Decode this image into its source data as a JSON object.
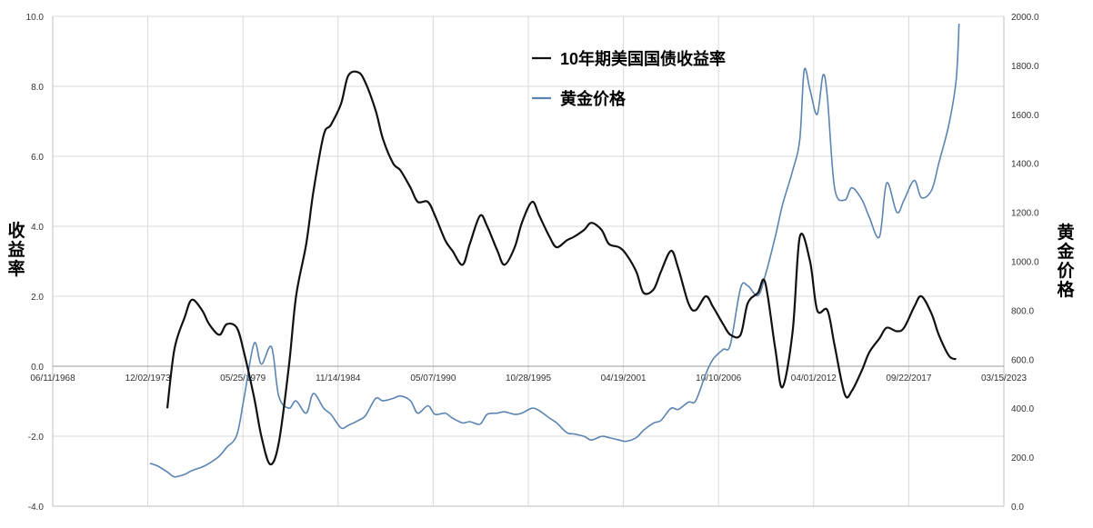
{
  "chart_data": {
    "type": "line",
    "xlabel": "",
    "ylabel_left": "收益率",
    "ylabel_right": "黄金价格",
    "y_left_range": [
      -4.0,
      10.0
    ],
    "y_right_range": [
      0.0,
      2000.0
    ],
    "y_left_ticks": [
      "-4.0",
      "-2.0",
      "0.0",
      "2.0",
      "4.0",
      "6.0",
      "8.0",
      "10.0"
    ],
    "y_right_ticks": [
      "0.0",
      "200.0",
      "400.0",
      "600.0",
      "800.0",
      "1000.0",
      "1200.0",
      "1400.0",
      "1600.0",
      "1800.0",
      "2000.0"
    ],
    "x_range": [
      "1968-06-11",
      "2023-03-15"
    ],
    "x_tick_labels": [
      "06/11/1968",
      "12/02/1973",
      "05/25/1979",
      "11/14/1984",
      "05/07/1990",
      "10/28/1995",
      "04/19/2001",
      "10/10/2006",
      "04/01/2012",
      "09/22/2017",
      "03/15/2023"
    ],
    "x_tick_dates": [
      "1968-06-11",
      "1973-12-02",
      "1979-05-25",
      "1984-11-14",
      "1990-05-07",
      "1995-10-28",
      "2001-04-19",
      "2006-10-10",
      "2012-04-01",
      "2017-09-22",
      "2023-03-15"
    ],
    "grid": true,
    "legend_position": "top-center",
    "series": [
      {
        "name": "10年期美国国债收益率",
        "axis": "left",
        "color": "#111111",
        "points": [
          [
            "1975-01",
            -1.2
          ],
          [
            "1975-06",
            0.5
          ],
          [
            "1976-01",
            1.4
          ],
          [
            "1976-06",
            1.9
          ],
          [
            "1977-01",
            1.6
          ],
          [
            "1977-06",
            1.2
          ],
          [
            "1978-01",
            0.9
          ],
          [
            "1978-06",
            1.2
          ],
          [
            "1979-01",
            1.1
          ],
          [
            "1979-06",
            0.4
          ],
          [
            "1980-01",
            -0.9
          ],
          [
            "1980-06",
            -2.0
          ],
          [
            "1980-12",
            -2.8
          ],
          [
            "1981-06",
            -2.2
          ],
          [
            "1982-01",
            0.0
          ],
          [
            "1982-06",
            2.0
          ],
          [
            "1983-01",
            3.5
          ],
          [
            "1983-06",
            5.0
          ],
          [
            "1984-01",
            6.6
          ],
          [
            "1984-06",
            6.9
          ],
          [
            "1985-01",
            7.5
          ],
          [
            "1985-06",
            8.3
          ],
          [
            "1986-01",
            8.4
          ],
          [
            "1986-06",
            8.1
          ],
          [
            "1987-01",
            7.3
          ],
          [
            "1987-06",
            6.5
          ],
          [
            "1988-01",
            5.8
          ],
          [
            "1988-06",
            5.6
          ],
          [
            "1989-01",
            5.1
          ],
          [
            "1989-06",
            4.7
          ],
          [
            "1990-01",
            4.7
          ],
          [
            "1990-06",
            4.3
          ],
          [
            "1991-01",
            3.6
          ],
          [
            "1991-06",
            3.3
          ],
          [
            "1992-01",
            2.9
          ],
          [
            "1992-06",
            3.5
          ],
          [
            "1993-01",
            4.3
          ],
          [
            "1993-06",
            4.0
          ],
          [
            "1994-01",
            3.3
          ],
          [
            "1994-06",
            2.9
          ],
          [
            "1995-01",
            3.4
          ],
          [
            "1995-06",
            4.1
          ],
          [
            "1996-01",
            4.7
          ],
          [
            "1996-06",
            4.3
          ],
          [
            "1997-01",
            3.7
          ],
          [
            "1997-06",
            3.4
          ],
          [
            "1998-01",
            3.6
          ],
          [
            "1998-06",
            3.7
          ],
          [
            "1999-01",
            3.9
          ],
          [
            "1999-06",
            4.1
          ],
          [
            "2000-01",
            3.9
          ],
          [
            "2000-06",
            3.5
          ],
          [
            "2001-01",
            3.4
          ],
          [
            "2001-06",
            3.2
          ],
          [
            "2002-01",
            2.7
          ],
          [
            "2002-06",
            2.1
          ],
          [
            "2003-01",
            2.2
          ],
          [
            "2003-06",
            2.7
          ],
          [
            "2004-01",
            3.3
          ],
          [
            "2004-06",
            2.8
          ],
          [
            "2005-01",
            1.8
          ],
          [
            "2005-06",
            1.6
          ],
          [
            "2006-01",
            2.0
          ],
          [
            "2006-06",
            1.7
          ],
          [
            "2007-01",
            1.2
          ],
          [
            "2007-06",
            0.9
          ],
          [
            "2008-01",
            0.9
          ],
          [
            "2008-06",
            1.8
          ],
          [
            "2009-01",
            2.1
          ],
          [
            "2009-06",
            2.4
          ],
          [
            "2010-01",
            0.5
          ],
          [
            "2010-06",
            -0.6
          ],
          [
            "2011-01",
            1.0
          ],
          [
            "2011-06",
            3.7
          ],
          [
            "2012-01",
            3.0
          ],
          [
            "2012-06",
            1.6
          ],
          [
            "2013-01",
            1.6
          ],
          [
            "2013-06",
            0.6
          ],
          [
            "2014-01",
            -0.8
          ],
          [
            "2014-06",
            -0.7
          ],
          [
            "2015-01",
            -0.1
          ],
          [
            "2015-06",
            0.4
          ],
          [
            "2016-01",
            0.8
          ],
          [
            "2016-06",
            1.1
          ],
          [
            "2017-01",
            1.0
          ],
          [
            "2017-06",
            1.1
          ],
          [
            "2018-01",
            1.7
          ],
          [
            "2018-06",
            2.0
          ],
          [
            "2019-01",
            1.5
          ],
          [
            "2019-06",
            0.9
          ],
          [
            "2020-01",
            0.3
          ],
          [
            "2020-06",
            0.2
          ]
        ]
      },
      {
        "name": "黄金价格",
        "axis": "right",
        "color": "#5b84b1",
        "points": [
          [
            "1974-01",
            175
          ],
          [
            "1974-06",
            165
          ],
          [
            "1975-01",
            140
          ],
          [
            "1975-06",
            120
          ],
          [
            "1976-01",
            130
          ],
          [
            "1976-06",
            145
          ],
          [
            "1977-01",
            160
          ],
          [
            "1977-06",
            175
          ],
          [
            "1978-01",
            205
          ],
          [
            "1978-06",
            240
          ],
          [
            "1979-01",
            290
          ],
          [
            "1979-06",
            440
          ],
          [
            "1980-01",
            665
          ],
          [
            "1980-06",
            580
          ],
          [
            "1981-01",
            650
          ],
          [
            "1981-06",
            450
          ],
          [
            "1982-01",
            400
          ],
          [
            "1982-06",
            430
          ],
          [
            "1983-01",
            380
          ],
          [
            "1983-06",
            460
          ],
          [
            "1984-01",
            400
          ],
          [
            "1984-06",
            375
          ],
          [
            "1985-01",
            320
          ],
          [
            "1985-06",
            330
          ],
          [
            "1986-01",
            350
          ],
          [
            "1986-06",
            370
          ],
          [
            "1987-01",
            440
          ],
          [
            "1987-06",
            430
          ],
          [
            "1988-01",
            440
          ],
          [
            "1988-06",
            450
          ],
          [
            "1989-01",
            430
          ],
          [
            "1989-06",
            380
          ],
          [
            "1990-01",
            410
          ],
          [
            "1990-06",
            375
          ],
          [
            "1991-01",
            380
          ],
          [
            "1991-06",
            360
          ],
          [
            "1992-01",
            340
          ],
          [
            "1992-06",
            345
          ],
          [
            "1993-01",
            335
          ],
          [
            "1993-06",
            375
          ],
          [
            "1994-01",
            380
          ],
          [
            "1994-06",
            385
          ],
          [
            "1995-01",
            375
          ],
          [
            "1995-06",
            380
          ],
          [
            "1996-01",
            400
          ],
          [
            "1996-06",
            390
          ],
          [
            "1997-01",
            360
          ],
          [
            "1997-06",
            340
          ],
          [
            "1998-01",
            300
          ],
          [
            "1998-06",
            295
          ],
          [
            "1999-01",
            285
          ],
          [
            "1999-06",
            270
          ],
          [
            "2000-01",
            285
          ],
          [
            "2000-06",
            280
          ],
          [
            "2001-01",
            270
          ],
          [
            "2001-06",
            265
          ],
          [
            "2002-01",
            280
          ],
          [
            "2002-06",
            310
          ],
          [
            "2003-01",
            340
          ],
          [
            "2003-06",
            350
          ],
          [
            "2004-01",
            400
          ],
          [
            "2004-06",
            395
          ],
          [
            "2005-01",
            425
          ],
          [
            "2005-06",
            430
          ],
          [
            "2006-01",
            540
          ],
          [
            "2006-06",
            600
          ],
          [
            "2007-01",
            640
          ],
          [
            "2007-06",
            660
          ],
          [
            "2008-01",
            890
          ],
          [
            "2008-06",
            900
          ],
          [
            "2009-01",
            860
          ],
          [
            "2009-06",
            940
          ],
          [
            "2010-01",
            1100
          ],
          [
            "2010-06",
            1230
          ],
          [
            "2011-01",
            1370
          ],
          [
            "2011-06",
            1500
          ],
          [
            "2011-09",
            1780
          ],
          [
            "2012-01",
            1700
          ],
          [
            "2012-06",
            1600
          ],
          [
            "2012-10",
            1760
          ],
          [
            "2013-01",
            1670
          ],
          [
            "2013-06",
            1300
          ],
          [
            "2014-01",
            1250
          ],
          [
            "2014-06",
            1300
          ],
          [
            "2015-01",
            1250
          ],
          [
            "2015-06",
            1180
          ],
          [
            "2016-01",
            1100
          ],
          [
            "2016-06",
            1320
          ],
          [
            "2017-01",
            1200
          ],
          [
            "2017-06",
            1250
          ],
          [
            "2018-01",
            1330
          ],
          [
            "2018-06",
            1260
          ],
          [
            "2019-01",
            1290
          ],
          [
            "2019-06",
            1400
          ],
          [
            "2020-01",
            1560
          ],
          [
            "2020-06",
            1740
          ],
          [
            "2020-08",
            1970
          ]
        ]
      }
    ]
  }
}
